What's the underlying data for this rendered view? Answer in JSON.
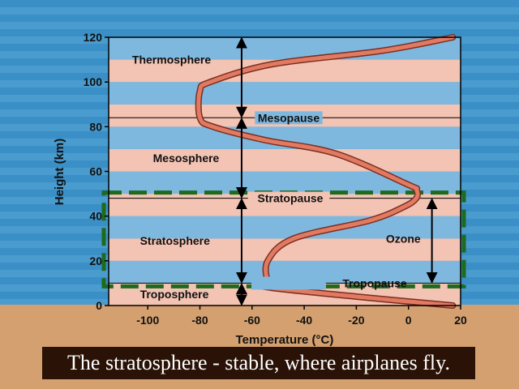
{
  "caption": "The stratosphere - stable, where airplanes fly.",
  "colors": {
    "band_pink": "#f3c3b3",
    "band_blue": "#7fb8df",
    "curve": "#e27a62",
    "curve_edge": "#7a2f22",
    "dashed_highlight": "#1e6a1e",
    "ground": "#d4a070"
  },
  "chart_data": {
    "type": "line",
    "xlabel": "Temperature (°C)",
    "ylabel": "Height (km)",
    "xlim": [
      -115,
      20
    ],
    "ylim": [
      0,
      120
    ],
    "xticks": [
      -100,
      -80,
      -60,
      -40,
      -20,
      0,
      20
    ],
    "yticks": [
      0,
      20,
      40,
      60,
      80,
      100,
      120
    ],
    "series": [
      {
        "points": [
          {
            "x": 17,
            "y": 0
          },
          {
            "x": -20,
            "y": 4
          },
          {
            "x": -53,
            "y": 8
          },
          {
            "x": -54,
            "y": 10
          },
          {
            "x": -54,
            "y": 20
          },
          {
            "x": -44,
            "y": 30
          },
          {
            "x": -15,
            "y": 38
          },
          {
            "x": -2,
            "y": 44
          },
          {
            "x": 3,
            "y": 48
          },
          {
            "x": 3,
            "y": 52
          },
          {
            "x": 0,
            "y": 54
          },
          {
            "x": -28,
            "y": 68
          },
          {
            "x": -55,
            "y": 74
          },
          {
            "x": -75,
            "y": 80
          },
          {
            "x": -80,
            "y": 84
          },
          {
            "x": -80,
            "y": 96
          },
          {
            "x": -76,
            "y": 100
          },
          {
            "x": -52,
            "y": 108
          },
          {
            "x": -10,
            "y": 114
          },
          {
            "x": 17,
            "y": 120
          }
        ]
      }
    ],
    "layers": [
      {
        "label": "Thermosphere",
        "x": -106,
        "y": 110
      },
      {
        "label": "Mesosphere",
        "x": -98,
        "y": 66
      },
      {
        "label": "Stratosphere",
        "x": -103,
        "y": 29
      },
      {
        "label": "Troposphere",
        "x": -103,
        "y": 5
      }
    ],
    "boundaries": [
      {
        "label": "Mesopause",
        "y": 84
      },
      {
        "label": "Stratopause",
        "y": 48
      },
      {
        "label": "Tropopause",
        "y": 10
      }
    ],
    "arrows": [
      {
        "x": -64,
        "y1": 120,
        "y2": 84
      },
      {
        "x": -64,
        "y1": 84,
        "y2": 48
      },
      {
        "x": -64,
        "y1": 48,
        "y2": 10
      },
      {
        "x": -64,
        "y1": 10,
        "y2": 0
      },
      {
        "x": 9,
        "y1": 48,
        "y2": 10
      }
    ],
    "annotations": [
      {
        "label": "Ozone",
        "x": -2,
        "y": 30
      }
    ],
    "band_height_km": 10,
    "grid": false
  }
}
